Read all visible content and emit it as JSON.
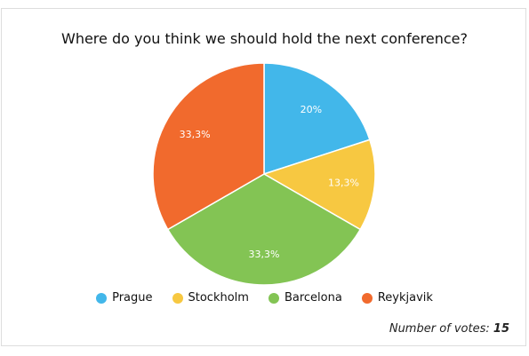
{
  "chart_data": {
    "type": "pie",
    "title": "Where do you think we should hold the next conference?",
    "categories": [
      "Prague",
      "Stockholm",
      "Barcelona",
      "Reykjavik"
    ],
    "values": [
      3,
      2,
      5,
      5
    ],
    "labels": [
      "20%",
      "13,3%",
      "33,3%",
      "33,3%"
    ],
    "colors": [
      "#42b7ea",
      "#f7c841",
      "#83c454",
      "#f16a2d"
    ],
    "legend_position": "bottom"
  },
  "footer": {
    "label": "Number of votes:",
    "count": "15"
  }
}
